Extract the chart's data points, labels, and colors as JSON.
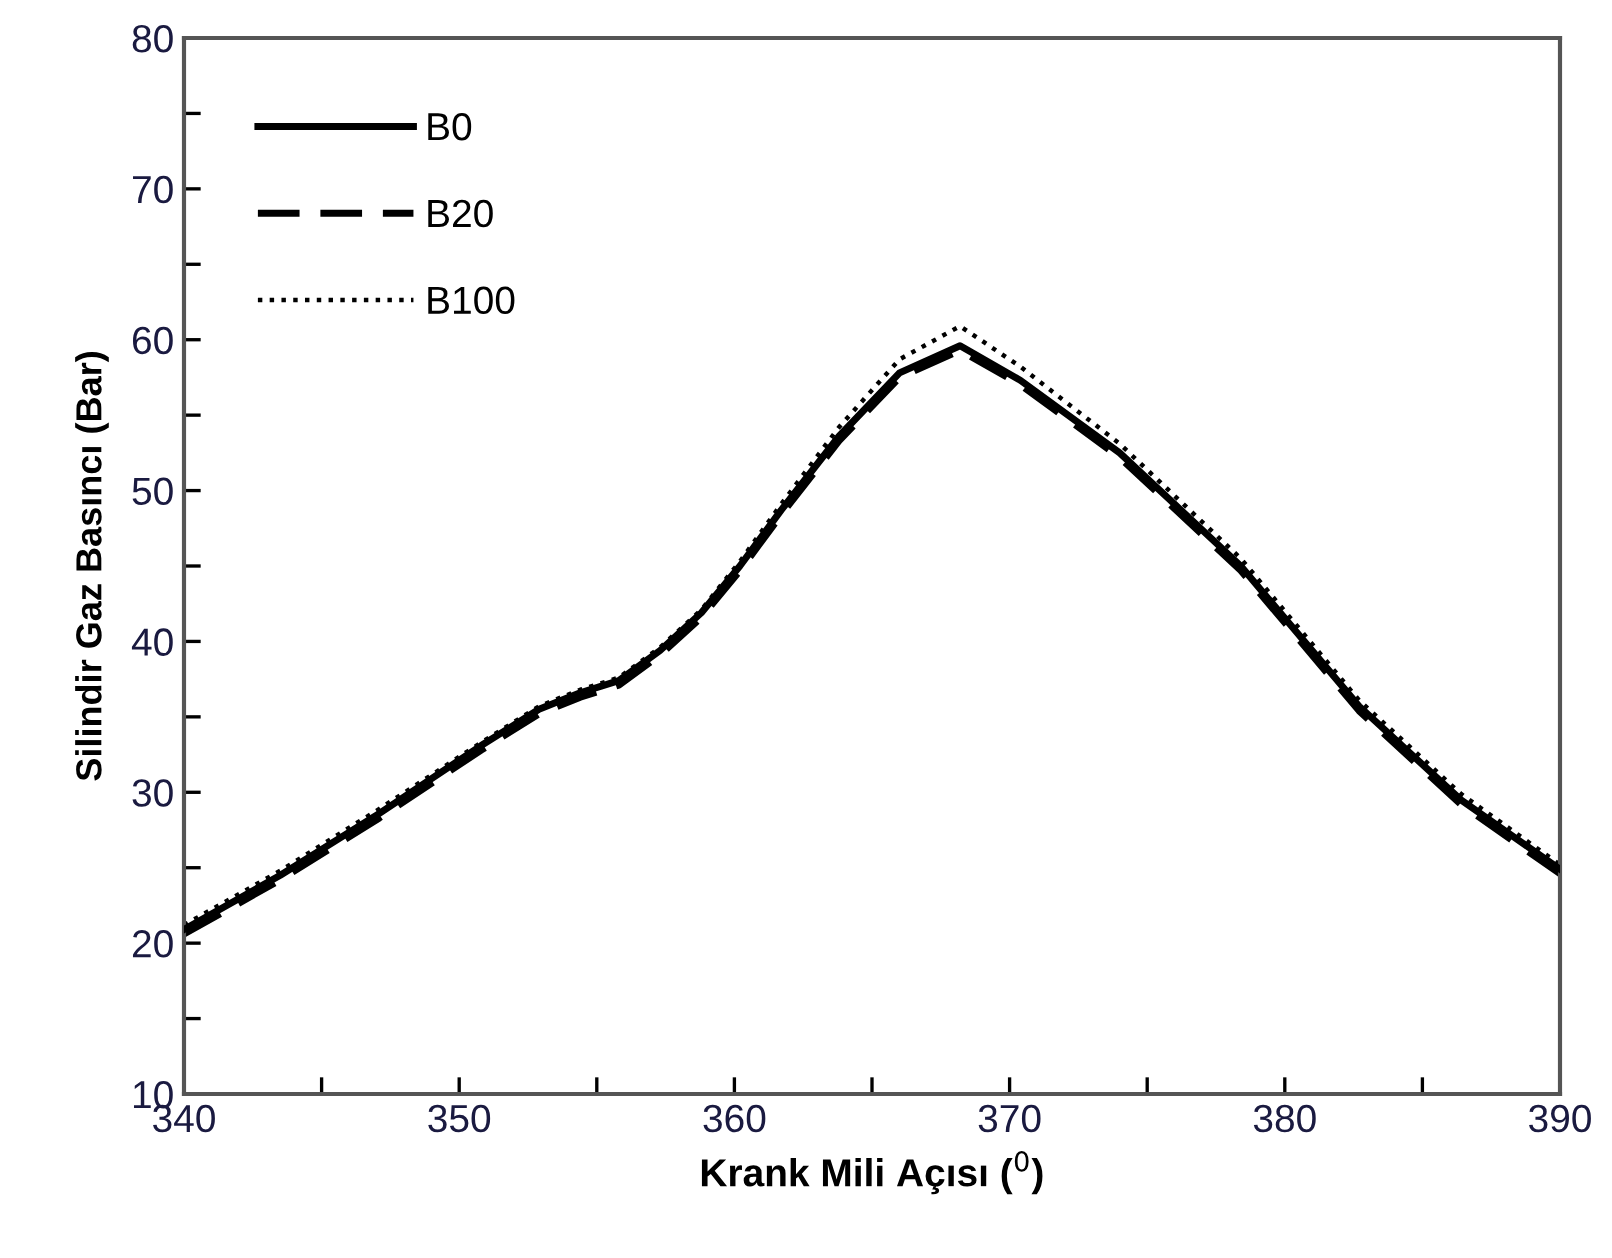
{
  "chart_data": {
    "type": "line",
    "xlabel": "Krank Mili Açısı ($^{0}$)",
    "ylabel": "Silindir Gaz Basıncı (Bar)",
    "x": [
      340,
      343.5,
      347.1,
      350.8,
      352.9,
      354.4,
      355.8,
      357.3,
      358.8,
      360.2,
      361.7,
      363.8,
      366.0,
      368.2,
      370.4,
      374.0,
      378.4,
      382.7,
      386.4,
      390
    ],
    "series": [
      {
        "name": "B0",
        "color": "#000000",
        "line_style": "solid",
        "values": [
          20.9,
          24.5,
          28.6,
          33.1,
          35.5,
          36.6,
          37.4,
          39.4,
          41.9,
          45.0,
          48.7,
          53.6,
          57.8,
          59.6,
          57.3,
          52.5,
          45.0,
          35.7,
          29.5,
          24.9
        ]
      },
      {
        "name": "B20",
        "color": "#000000",
        "line_style": "dashed",
        "values": [
          20.6,
          24.2,
          28.3,
          32.8,
          35.2,
          36.3,
          37.1,
          39.1,
          41.6,
          44.7,
          48.4,
          53.3,
          57.5,
          59.3,
          57.0,
          52.2,
          44.7,
          35.4,
          29.2,
          24.6
        ]
      },
      {
        "name": "B100",
        "color": "#000000",
        "line_style": "dotted",
        "values": [
          21.2,
          24.8,
          28.9,
          33.3,
          35.7,
          36.8,
          37.6,
          39.6,
          42.1,
          45.3,
          49.1,
          54.2,
          58.7,
          60.9,
          58.2,
          53.1,
          45.5,
          36.1,
          29.9,
          25.2
        ]
      }
    ],
    "xlim": [
      340,
      390
    ],
    "ylim": [
      10,
      80
    ],
    "xticks": [
      340,
      {
        "value": 345,
        "label": null
      },
      350,
      {
        "value": 355,
        "label": null
      },
      360,
      {
        "value": 365,
        "label": null
      },
      370,
      {
        "value": 375,
        "label": null
      },
      380,
      {
        "value": 385,
        "label": null
      },
      390
    ],
    "yticks": [
      10,
      {
        "value": 15,
        "label": null
      },
      20,
      {
        "value": 25,
        "label": null
      },
      30,
      {
        "value": 35,
        "label": null
      },
      40,
      {
        "value": 45,
        "label": null
      },
      50,
      {
        "value": 55,
        "label": null
      },
      60,
      {
        "value": 65,
        "label": null
      },
      70,
      {
        "value": 75,
        "label": null
      },
      80
    ],
    "legend": "top left",
    "grid": false,
    "marker": "none"
  }
}
